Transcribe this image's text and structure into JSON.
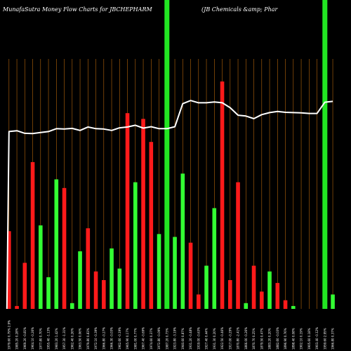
{
  "chart_data": {
    "type": "bar",
    "title_left": "MunafaSutra  Money Flow  Charts for JBCHEPHARM",
    "title_right": "(JB Chemicals &amp; Phar",
    "xlabel": "",
    "ylabel": "",
    "ylim": [
      0,
      100
    ],
    "grid": "vertical",
    "categories": [
      "1979.60 0.79% 2.9%",
      "1985.20 0.28%",
      "1969.20 -0.81%",
      "1964.10 -0.26%",
      "1977.80 0.70%",
      "1955.40 -1.13%",
      "1983.20 1.42%",
      "1957.30 -1.31%",
      "1962.40 0.26%",
      "1963.50 0.06%",
      "1979.80 0.83%",
      "1972.10 -0.39%",
      "1966.80 -0.27%",
      "1966.30 -0.03%",
      "1962.60 -0.19%",
      "1965.90 0.17%",
      "1981.00 0.77%",
      "1967.40 -0.69%",
      "1974.60 0.37%",
      "1972.80 -0.09%",
      "1987.20 0.73%",
      "1923.80 -3.19%",
      "1940.60 0.87%",
      "1931.20 -0.48%",
      "1919.00 -0.63%",
      "1927.40 0.44%",
      "1931.30 0.20%",
      "1922.50 -0.46%",
      "1917.00 -0.29%",
      "1870.80 -2.41%",
      "1866.00 -0.26%",
      "1870.70 0.25%",
      "1879.50 0.47%",
      "1883.20 0.20%",
      "1882.60 -0.03%",
      "1896.90 0.76%",
      "1898.40 0.08%",
      "1902.10 0.19%",
      "1905.60 0.18%",
      "1903.40 -0.12%",
      "1959.60 2.95%",
      "1966.80 0.37%"
    ],
    "colors": [
      "red",
      "red",
      "red",
      "red",
      "green",
      "green",
      "green",
      "red",
      "green",
      "green",
      "red",
      "red",
      "red",
      "green",
      "green",
      "red",
      "green",
      "red",
      "red",
      "green",
      "green",
      "green",
      "green",
      "red",
      "red",
      "green",
      "green",
      "red",
      "red",
      "red",
      "green",
      "red",
      "red",
      "green",
      "red",
      "red",
      "green",
      "red",
      "red",
      "red",
      "green",
      "green"
    ],
    "values": [
      27,
      1,
      16,
      51,
      29,
      11,
      45,
      42,
      2,
      20,
      28,
      13,
      10,
      21,
      14,
      68,
      44,
      66,
      58,
      26,
      0,
      25,
      47,
      23,
      5,
      15,
      35,
      79,
      10,
      44,
      2,
      15,
      6,
      13,
      9,
      3,
      1,
      0,
      0,
      0,
      0,
      5
    ],
    "flow_line": [
      61.6,
      61.9,
      61.0,
      60.9,
      61.3,
      61.6,
      62.6,
      62.5,
      62.7,
      62.0,
      63.2,
      62.6,
      62.5,
      62.0,
      62.9,
      63.2,
      63.8,
      62.8,
      63.3,
      62.6,
      62.6,
      63.3,
      71.3,
      72.4,
      71.6,
      71.6,
      71.9,
      71.6,
      69.9,
      67.3,
      67.0,
      66.1,
      67.5,
      68.2,
      68.6,
      68.3,
      68.2,
      68.1,
      67.9,
      67.9,
      71.8,
      72.1
    ],
    "highlight_categories": [
      "1987.20 0.73%",
      "1959.60 2.95%"
    ]
  },
  "colors": {
    "background": "#000000",
    "grid": "#b8660b",
    "up": "#33ff33",
    "down": "#ff1a1a",
    "highlight": "#22e622",
    "line": "#ffffff",
    "text": "#ffffff"
  }
}
